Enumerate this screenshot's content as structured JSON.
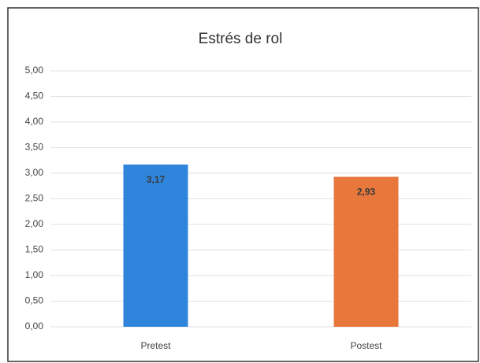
{
  "chart_data": {
    "type": "bar",
    "title": "Estrés de rol",
    "categories": [
      "Pretest",
      "Postest"
    ],
    "values": [
      3.17,
      2.93
    ],
    "value_labels": [
      "3,17",
      "2,93"
    ],
    "colors": [
      "#2f84dc",
      "#e8773c"
    ],
    "ylim": [
      0,
      5
    ],
    "yticks": [
      {
        "value": 0,
        "label": "0,00"
      },
      {
        "value": 0.5,
        "label": "0,50"
      },
      {
        "value": 1,
        "label": "1,00"
      },
      {
        "value": 1.5,
        "label": "1,50"
      },
      {
        "value": 2,
        "label": "2,00"
      },
      {
        "value": 2.5,
        "label": "2,50"
      },
      {
        "value": 3,
        "label": "3,00"
      },
      {
        "value": 3.5,
        "label": "3,50"
      },
      {
        "value": 4,
        "label": "4,00"
      },
      {
        "value": 4.5,
        "label": "4,50"
      },
      {
        "value": 5,
        "label": "5,00"
      }
    ],
    "grid": true
  }
}
